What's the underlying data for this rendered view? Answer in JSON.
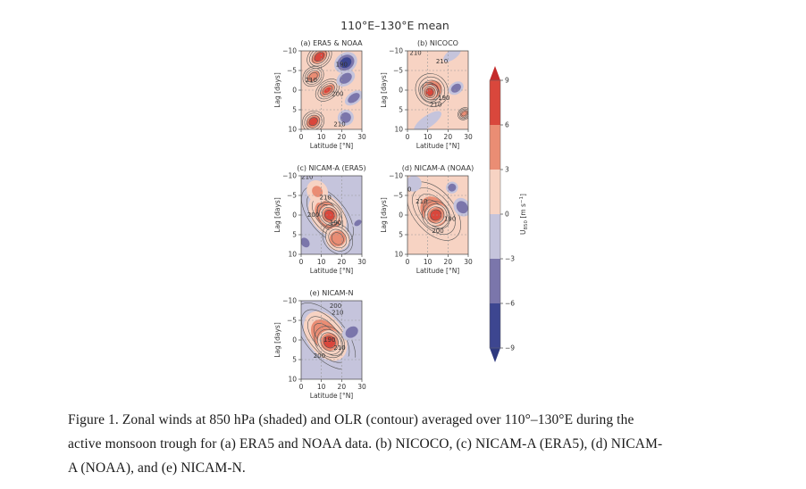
{
  "figure": {
    "suptitle": "110°E–130°E mean",
    "colorbar": {
      "label": "U850 [m s-1]",
      "label_main": "U",
      "label_sub": "850",
      "label_unit": " [m s",
      "label_sup": "−1",
      "label_close": "]",
      "levels": [
        -9,
        -6,
        -3,
        0,
        3,
        6,
        9
      ],
      "tick_labels": [
        "−9",
        "−6",
        "−3",
        "0",
        "3",
        "6",
        "9"
      ],
      "colors": [
        "#2f3a80",
        "#3d4690",
        "#7b76ab",
        "#c5c4dc",
        "#f7d3c3",
        "#ea8d74",
        "#d9473c",
        "#c42a2a"
      ],
      "extend": "both"
    }
  },
  "chart_data": [
    {
      "type": "heatmap",
      "panel": "a",
      "title": "(a) ERA5 & NOAA",
      "xlabel": "Latitude [°N]",
      "ylabel": "Lag [days]",
      "xlim": [
        0,
        30
      ],
      "ylim": [
        -10,
        10
      ],
      "xticks": [
        "0",
        "10",
        "20",
        "30"
      ],
      "yticks": [
        "−10",
        "−5",
        "0",
        "5",
        "10"
      ],
      "background": 1,
      "blobs": [
        {
          "lat": 9,
          "lag": -8.5,
          "rlat": 6,
          "rlag": 1.8,
          "value": 7
        },
        {
          "lat": 6,
          "lag": -3.5,
          "rlat": 5,
          "rlag": 1.6,
          "value": 5
        },
        {
          "lat": 13,
          "lag": 0,
          "rlat": 6,
          "rlag": 1.6,
          "value": 6
        },
        {
          "lat": 6,
          "lag": 8,
          "rlat": 5,
          "rlag": 1.8,
          "value": 7
        },
        {
          "lat": 22,
          "lag": -7,
          "rlat": 6,
          "rlag": 2.5,
          "value": -7
        },
        {
          "lat": 22,
          "lag": -3,
          "rlat": 5,
          "rlag": 1.8,
          "value": -5
        },
        {
          "lat": 26,
          "lag": 2,
          "rlat": 5,
          "rlag": 1.5,
          "value": -4
        },
        {
          "lat": 22,
          "lag": 7,
          "rlat": 4,
          "rlag": 2,
          "value": -5
        }
      ],
      "contour_labels": [
        {
          "lat": 20,
          "lag": -6,
          "text": "190"
        },
        {
          "lat": 5,
          "lag": -2,
          "text": "210"
        },
        {
          "lat": 18,
          "lag": 1.5,
          "text": "200"
        },
        {
          "lat": 19,
          "lag": 9.2,
          "text": "210"
        }
      ]
    },
    {
      "type": "heatmap",
      "panel": "b",
      "title": "(b) NICOCO",
      "xlabel": "Latitude [°N]",
      "ylabel": "Lag [days]",
      "xlim": [
        0,
        30
      ],
      "ylim": [
        -10,
        10
      ],
      "xticks": [
        "0",
        "10",
        "20",
        "30"
      ],
      "yticks": [
        "−10",
        "−5",
        "0",
        "5",
        "10"
      ],
      "background": 1,
      "blobs": [
        {
          "lat": 12,
          "lag": 0,
          "rlat": 7,
          "rlag": 3,
          "value": 7
        },
        {
          "lat": 11,
          "lag": 0.5,
          "rlat": 4,
          "rlag": 1.8,
          "value": 8
        },
        {
          "lat": 24,
          "lag": -0.5,
          "rlat": 4,
          "rlag": 1.5,
          "value": -5
        },
        {
          "lat": 22,
          "lag": -9,
          "rlat": 5,
          "rlag": 1.2,
          "value": -2
        },
        {
          "lat": 28,
          "lag": 6,
          "rlat": 3,
          "rlag": 1,
          "value": 5
        },
        {
          "lat": 10,
          "lag": 8,
          "rlat": 8,
          "rlag": 1.5,
          "value": -2
        }
      ],
      "contour_labels": [
        {
          "lat": 4,
          "lag": -9,
          "text": "210"
        },
        {
          "lat": 17,
          "lag": -6.8,
          "text": "210"
        },
        {
          "lat": 18,
          "lag": 2.5,
          "text": "190"
        },
        {
          "lat": 14,
          "lag": 4.2,
          "text": "210"
        }
      ]
    },
    {
      "type": "heatmap",
      "panel": "c",
      "title": "(c) NICAM-A (ERA5)",
      "xlabel": "Latitude [°N]",
      "ylabel": "Lag [days]",
      "xlim": [
        0,
        30
      ],
      "ylim": [
        -10,
        10
      ],
      "xticks": [
        "0",
        "10",
        "20",
        "30"
      ],
      "yticks": [
        "−10",
        "−5",
        "0",
        "5",
        "10"
      ],
      "background": -1,
      "blobs": [
        {
          "lat": 13,
          "lag": 0,
          "rlat": 8,
          "rlag": 6,
          "value": 3.5
        },
        {
          "lat": 14,
          "lag": 0,
          "rlat": 5,
          "rlag": 2.5,
          "value": 7
        },
        {
          "lat": 18,
          "lag": 6,
          "rlat": 6,
          "rlag": 3,
          "value": 4
        },
        {
          "lat": 8,
          "lag": -6,
          "rlat": 5,
          "rlag": 3,
          "value": 3
        },
        {
          "lat": 26,
          "lag": -4,
          "rlat": 4,
          "rlag": 3,
          "value": -2
        },
        {
          "lat": 28,
          "lag": 2,
          "rlat": 3,
          "rlag": 1,
          "value": -5
        },
        {
          "lat": 2,
          "lag": 7,
          "rlat": 3,
          "rlag": 2,
          "value": -5
        }
      ],
      "contour_labels": [
        {
          "lat": 3,
          "lag": -9.2,
          "text": "210"
        },
        {
          "lat": 12,
          "lag": -4,
          "text": "210"
        },
        {
          "lat": 6,
          "lag": 0.5,
          "text": "200"
        },
        {
          "lat": 17,
          "lag": 2.5,
          "text": "190"
        }
      ]
    },
    {
      "type": "heatmap",
      "panel": "d",
      "title": "(d) NICAM-A (NOAA)",
      "xlabel": "Latitude [°N]",
      "ylabel": "Lag [days]",
      "xlim": [
        0,
        30
      ],
      "ylim": [
        -10,
        10
      ],
      "xticks": [
        "0",
        "10",
        "20",
        "30"
      ],
      "yticks": [
        "−10",
        "−5",
        "0",
        "5",
        "10"
      ],
      "background": 1,
      "blobs": [
        {
          "lat": 13,
          "lag": -1,
          "rlat": 9,
          "rlag": 6,
          "value": 4
        },
        {
          "lat": 14,
          "lag": 0,
          "rlat": 6,
          "rlag": 2.5,
          "value": 7
        },
        {
          "lat": 27,
          "lag": -2,
          "rlat": 4,
          "rlag": 2.5,
          "value": -5
        },
        {
          "lat": 22,
          "lag": -7,
          "rlat": 3,
          "rlag": 1.5,
          "value": -4
        },
        {
          "lat": 3,
          "lag": -8,
          "rlat": 4,
          "rlag": 2,
          "value": -1
        }
      ],
      "contour_labels": [
        {
          "lat": 1,
          "lag": -6,
          "text": "0"
        },
        {
          "lat": 7,
          "lag": -3,
          "text": "210"
        },
        {
          "lat": 21,
          "lag": 1.5,
          "text": "190"
        },
        {
          "lat": 15,
          "lag": 4.5,
          "text": "200"
        }
      ]
    },
    {
      "type": "heatmap",
      "panel": "e",
      "title": "(e) NICAM-N",
      "xlabel": "Latitude [°N]",
      "ylabel": "Lag [days]",
      "xlim": [
        0,
        30
      ],
      "ylim": [
        -10,
        10
      ],
      "xticks": [
        "0",
        "10",
        "20",
        "30"
      ],
      "yticks": [
        "−10",
        "−5",
        "0",
        "5",
        "10"
      ],
      "background": -1,
      "blobs": [
        {
          "lat": 12,
          "lag": -1,
          "rlat": 9,
          "rlag": 7,
          "value": 3.5
        },
        {
          "lat": 14,
          "lag": 0.5,
          "rlat": 6,
          "rlag": 3,
          "value": 7
        },
        {
          "lat": 25,
          "lag": -2,
          "rlat": 5,
          "rlag": 2,
          "value": -5
        },
        {
          "lat": 2,
          "lag": 8,
          "rlat": 4,
          "rlag": 3,
          "value": -2
        },
        {
          "lat": 25,
          "lag": 7,
          "rlat": 5,
          "rlag": 3,
          "value": -1
        }
      ],
      "contour_labels": [
        {
          "lat": 17,
          "lag": -8.2,
          "text": "200"
        },
        {
          "lat": 18,
          "lag": -6.5,
          "text": "210"
        },
        {
          "lat": 14,
          "lag": 0.5,
          "text": "190"
        },
        {
          "lat": 19,
          "lag": 2.5,
          "text": "210"
        },
        {
          "lat": 9,
          "lag": 4.5,
          "text": "200"
        }
      ]
    }
  ],
  "caption": {
    "lines": [
      "Figure 1. Zonal winds at 850 hPa (shaded) and OLR (contour) averaged over 110°–130°E during the",
      "active monsoon trough for (a) ERA5 and NOAA data. (b) NICOCO, (c) NICAM-A (ERA5), (d) NICAM-",
      "A (NOAA), and (e) NICAM-N."
    ]
  }
}
